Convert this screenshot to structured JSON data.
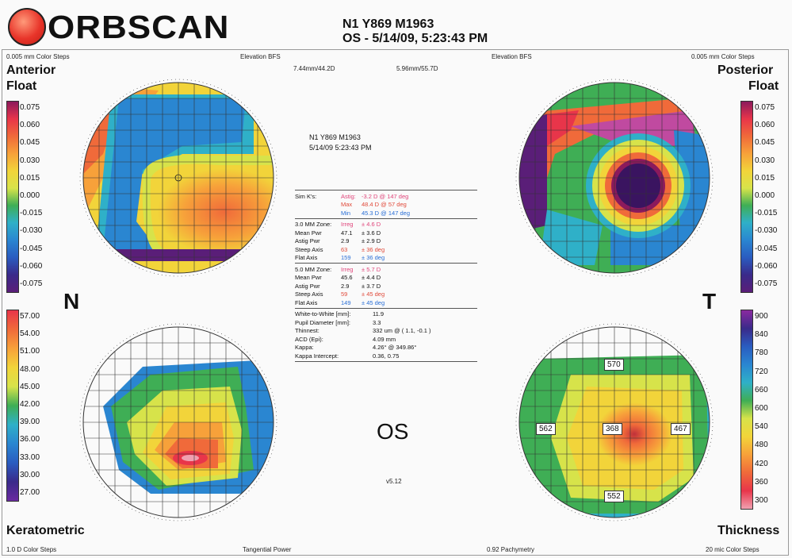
{
  "header": {
    "logo_text": "ORBSCAN",
    "patient_line": "N1 Y869 M1963",
    "exam_line": "OS - 5/14/09, 5:23:43 PM"
  },
  "top_bar": {
    "left_steps": "0.005 mm Color Steps",
    "left_map_type": "Elevation BFS",
    "left_bfs": "7.44mm/44.2D",
    "right_bfs": "5.96mm/55.7D",
    "right_map_type": "Elevation BFS",
    "right_steps": "0.005 mm Color Steps"
  },
  "bottom_bar": {
    "left_steps": "1.0 D Color Steps",
    "left_map_type": "Tangential Power",
    "right_map_type": "0.92 Pachymetry",
    "right_steps": "20 mic Color Steps"
  },
  "titles": {
    "anterior": "Anterior",
    "anterior_sub": "Float",
    "posterior": "Posterior",
    "posterior_sub": "Float",
    "keratometric": "Keratometric",
    "thickness": "Thickness",
    "nasal": "N",
    "temporal": "T",
    "eye": "OS",
    "version": "v5.12"
  },
  "center_info": {
    "patient": "N1 Y869 M1963",
    "datetime": "5/14/09 5:23:43 PM",
    "sim_k": [
      {
        "label": "Sim K's:",
        "name": "Astig:",
        "value": "-3.2 D @ 147 deg",
        "color": "pink"
      },
      {
        "label": "",
        "name": "Max",
        "value": "48.4 D @ 57 deg",
        "color": "red"
      },
      {
        "label": "",
        "name": "Min",
        "value": "45.3 D @ 147 deg",
        "color": "blue"
      }
    ],
    "zone3": [
      {
        "label": "3.0 MM Zone:",
        "name": "Irreg",
        "value": "± 4.6 D",
        "color": "pink"
      },
      {
        "label": "Mean Pwr",
        "name": "47.1",
        "value": "± 3.6 D",
        "color": ""
      },
      {
        "label": "Astig Pwr",
        "name": "2.9",
        "value": "± 2.9 D",
        "color": ""
      },
      {
        "label": "Steep Axis",
        "name": "63",
        "value": "± 36 deg",
        "color": "red"
      },
      {
        "label": "Flat Axis",
        "name": "159",
        "value": "± 36 deg",
        "color": "blue"
      }
    ],
    "zone5": [
      {
        "label": "5.0 MM Zone:",
        "name": "Irreg",
        "value": "± 5.7 D",
        "color": "pink"
      },
      {
        "label": "Mean Pwr",
        "name": "45.6",
        "value": "± 4.4 D",
        "color": ""
      },
      {
        "label": "Astig Pwr",
        "name": "2.9",
        "value": "± 3.7 D",
        "color": ""
      },
      {
        "label": "Steep Axis",
        "name": "59",
        "value": "± 45 deg",
        "color": "red"
      },
      {
        "label": "Flat Axis",
        "name": "149",
        "value": "± 45 deg",
        "color": "blue"
      }
    ],
    "misc": [
      {
        "label": "White-to-White [mm]:",
        "value": "11.9"
      },
      {
        "label": "Pupil Diameter [mm]:",
        "value": "3.3"
      },
      {
        "label": "Thinnest:",
        "value": "332 um @ ( 1.1, -0.1 )"
      },
      {
        "label": "ACD (Epi):",
        "value": "4.09 mm"
      },
      {
        "label": "Kappa:",
        "value": "4.26° @ 349.86°"
      },
      {
        "label": "Kappa Intercept:",
        "value": "0.36, 0.75"
      }
    ]
  },
  "float_scale": {
    "labels": [
      "0.075",
      "0.060",
      "0.045",
      "0.030",
      "0.015",
      "0.000",
      "-0.015",
      "-0.030",
      "-0.045",
      "-0.060",
      "-0.075"
    ],
    "colors": [
      "#8c1a5c",
      "#e8354a",
      "#f06a3a",
      "#f7a13a",
      "#f2d43a",
      "#d7e34a",
      "#3fae55",
      "#2fb0c8",
      "#2a86d1",
      "#2a5cc0",
      "#3a2a8a",
      "#5a1e78"
    ]
  },
  "kerato_scale": {
    "labels": [
      "57.00",
      "54.00",
      "51.00",
      "48.00",
      "45.00",
      "42.00",
      "39.00",
      "36.00",
      "33.00",
      "30.00",
      "27.00"
    ],
    "colors": [
      "#e8354a",
      "#f06a3a",
      "#f7a13a",
      "#f2d43a",
      "#d7e34a",
      "#3fae55",
      "#2fb0c8",
      "#2a86d1",
      "#2a5cc0",
      "#3a2a8a",
      "#6a2aa0"
    ]
  },
  "thickness_scale": {
    "labels": [
      "900",
      "840",
      "780",
      "720",
      "660",
      "600",
      "540",
      "480",
      "420",
      "360",
      "300"
    ],
    "colors": [
      "#8a2aa0",
      "#3a2a8a",
      "#2a5cc0",
      "#2a86d1",
      "#2fb0c8",
      "#3fae55",
      "#d7e34a",
      "#f2d43a",
      "#f7a13a",
      "#f06a3a",
      "#e8354a",
      "#f0a0b0"
    ]
  },
  "thickness_points": {
    "top": "570",
    "left": "562",
    "center": "368",
    "right": "467",
    "bottom": "552"
  }
}
